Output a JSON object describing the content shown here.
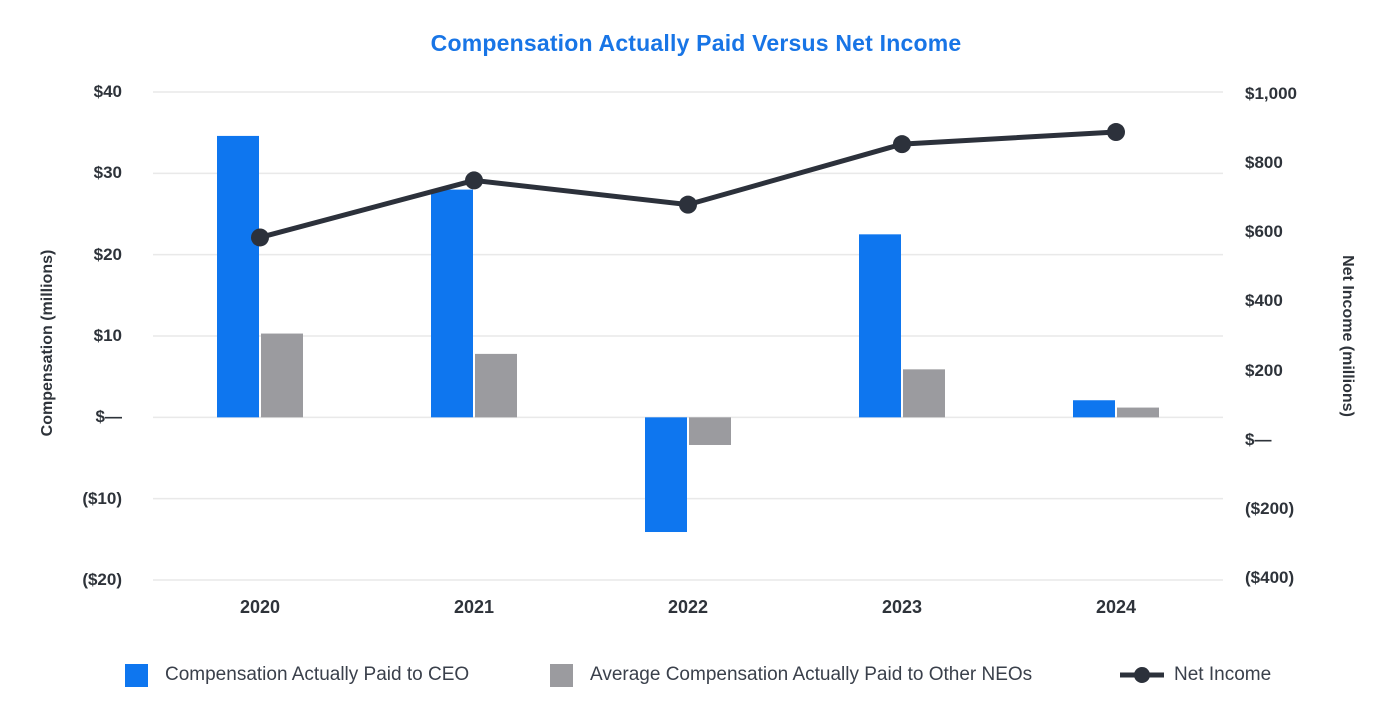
{
  "colors": {
    "title": "#1875e6",
    "text": "#2e333a",
    "legend_text": "#3a404b",
    "grid": "#e9e9e9",
    "ceo_bar": "#0e76ef",
    "neo_bar": "#9b9b9f",
    "line": "#2c313b",
    "background": "#ffffff"
  },
  "axes": {
    "left": {
      "ticks": [
        {
          "label": "$40",
          "value": 40
        },
        {
          "label": "$30",
          "value": 30
        },
        {
          "label": "$20",
          "value": 20
        },
        {
          "label": "$10",
          "value": 10
        },
        {
          "label": "$—",
          "value": 0
        },
        {
          "label": "($10)",
          "value": -10
        },
        {
          "label": "($20)",
          "value": -20
        }
      ]
    },
    "right": {
      "ticks": [
        {
          "label": "$1,000",
          "value": 1000
        },
        {
          "label": "$800",
          "value": 800
        },
        {
          "label": "$600",
          "value": 600
        },
        {
          "label": "$400",
          "value": 400
        },
        {
          "label": "$200",
          "value": 200
        },
        {
          "label": "$—",
          "value": 0
        },
        {
          "label": "($200)",
          "value": -200
        },
        {
          "label": "($400)",
          "value": -400
        }
      ]
    }
  },
  "legend": [
    {
      "label": "Compensation Actually Paid to CEO",
      "swatch": "square",
      "color": "#0e76ef"
    },
    {
      "label": "Average Compensation Actually Paid to Other NEOs",
      "swatch": "square",
      "color": "#9b9b9f"
    },
    {
      "label": "Net Income",
      "swatch": "line-dot",
      "color": "#2c313b"
    }
  ],
  "chart_data": {
    "type": "bar+line combo",
    "title": "Compensation Actually Paid Versus Net Income",
    "categories": [
      "2020",
      "2021",
      "2022",
      "2023",
      "2024"
    ],
    "series": [
      {
        "name": "Compensation Actually Paid to CEO",
        "type": "bar",
        "axis": "left",
        "color": "#0e76ef",
        "values": [
          34.6,
          28.0,
          -14.1,
          22.5,
          2.1
        ]
      },
      {
        "name": "Average Compensation Actually Paid to Other NEOs",
        "type": "bar",
        "axis": "left",
        "color": "#9b9b9f",
        "values": [
          10.3,
          7.8,
          -3.4,
          5.9,
          1.2
        ]
      },
      {
        "name": "Net Income",
        "type": "line",
        "axis": "right",
        "color": "#2c313b",
        "values": [
          585,
          750,
          680,
          855,
          890
        ]
      }
    ],
    "left_axis": {
      "label": "Compensation (millions)",
      "range": [
        -20,
        40
      ],
      "tick_interval": 10
    },
    "right_axis": {
      "label": "Net Income (millions)",
      "range": [
        -400,
        1000
      ],
      "tick_interval": 200
    },
    "grid": true,
    "legend_position": "bottom"
  }
}
